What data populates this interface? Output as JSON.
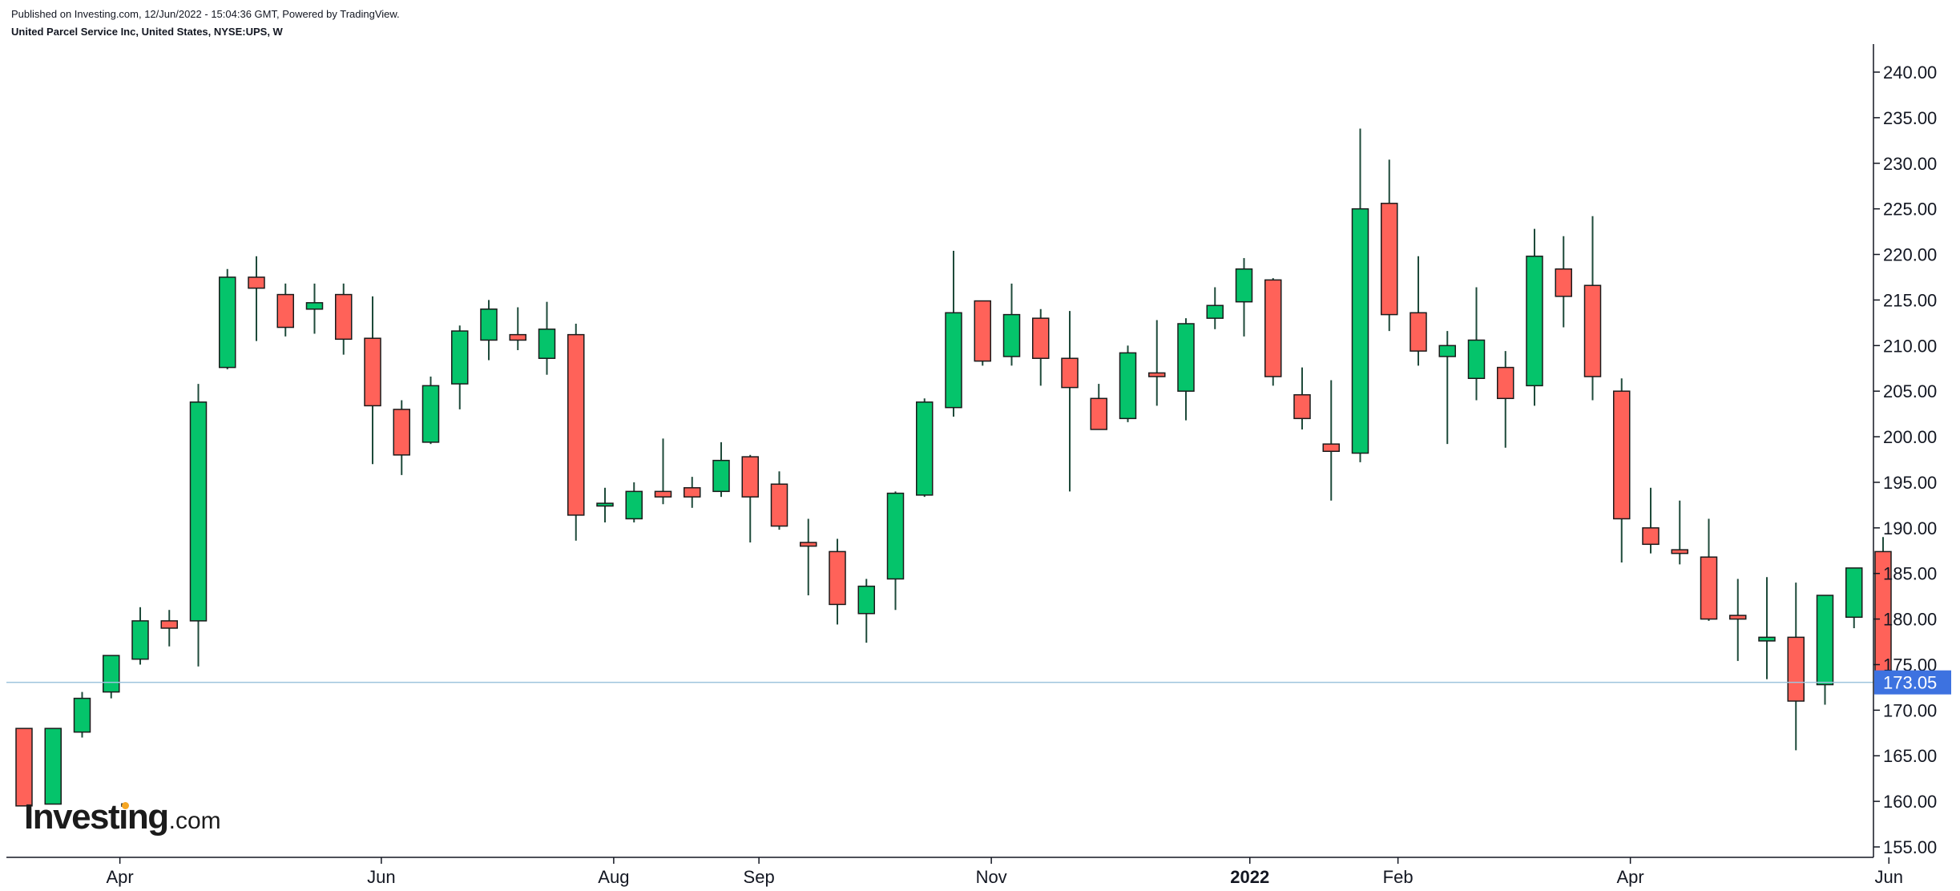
{
  "header": {
    "published": "Published on Investing.com, 12/Jun/2022 - 15:04:36 GMT, Powered by TradingView.",
    "symbol": "United Parcel Service Inc, United States, NYSE:UPS, W"
  },
  "logo": {
    "main": "Investing",
    "sub": ".com"
  },
  "colors": {
    "up": "#05c46b",
    "down": "#ff6259",
    "wick": "#1e4a3a",
    "price_line": "#9ec4dd",
    "price_tag": "#3d72e0",
    "axis": "#131722"
  },
  "chart_data": {
    "type": "candlestick",
    "ylim": [
      154,
      242
    ],
    "y_ticks": [
      "155.00",
      "160.00",
      "165.00",
      "170.00",
      "175.00",
      "180.00",
      "185.00",
      "190.00",
      "195.00",
      "200.00",
      "205.00",
      "210.00",
      "215.00",
      "220.00",
      "225.00",
      "230.00",
      "235.00",
      "240.00"
    ],
    "x_ticks": [
      {
        "label": "Apr",
        "index": 3.3,
        "bold": false
      },
      {
        "label": "Jun",
        "index": 12.3,
        "bold": false
      },
      {
        "label": "Aug",
        "index": 20.3,
        "bold": false
      },
      {
        "label": "Sep",
        "index": 25.3,
        "bold": false
      },
      {
        "label": "Nov",
        "index": 33.3,
        "bold": false
      },
      {
        "label": "2022",
        "index": 42.2,
        "bold": true
      },
      {
        "label": "Feb",
        "index": 47.3,
        "bold": false
      },
      {
        "label": "Apr",
        "index": 55.3,
        "bold": false
      },
      {
        "label": "Jun",
        "index": 64.2,
        "bold": false
      }
    ],
    "last_price": 173.05,
    "last_price_label": "173.05",
    "candles": [
      {
        "o": 168.0,
        "h": 168.0,
        "l": 159.5,
        "c": 159.5
      },
      {
        "o": 159.7,
        "h": 168.0,
        "l": 159.7,
        "c": 168.0
      },
      {
        "o": 167.6,
        "h": 172.0,
        "l": 167.0,
        "c": 171.3
      },
      {
        "o": 172.0,
        "h": 176.0,
        "l": 171.3,
        "c": 176.0
      },
      {
        "o": 175.6,
        "h": 181.3,
        "l": 175.0,
        "c": 179.8
      },
      {
        "o": 179.8,
        "h": 181.0,
        "l": 177.0,
        "c": 179.0
      },
      {
        "o": 179.8,
        "h": 205.8,
        "l": 174.8,
        "c": 203.8
      },
      {
        "o": 207.6,
        "h": 218.4,
        "l": 207.4,
        "c": 217.5
      },
      {
        "o": 217.5,
        "h": 219.8,
        "l": 210.5,
        "c": 216.3
      },
      {
        "o": 215.6,
        "h": 216.8,
        "l": 211.0,
        "c": 212.0
      },
      {
        "o": 214.0,
        "h": 216.8,
        "l": 211.3,
        "c": 214.7
      },
      {
        "o": 215.6,
        "h": 216.8,
        "l": 209.0,
        "c": 210.7
      },
      {
        "o": 210.8,
        "h": 215.4,
        "l": 197.0,
        "c": 203.4
      },
      {
        "o": 203.0,
        "h": 204.0,
        "l": 195.8,
        "c": 198.0
      },
      {
        "o": 199.4,
        "h": 206.6,
        "l": 199.2,
        "c": 205.6
      },
      {
        "o": 205.8,
        "h": 212.2,
        "l": 203.0,
        "c": 211.6
      },
      {
        "o": 210.6,
        "h": 215.0,
        "l": 208.4,
        "c": 214.0
      },
      {
        "o": 211.2,
        "h": 214.2,
        "l": 209.5,
        "c": 210.6
      },
      {
        "o": 208.6,
        "h": 214.8,
        "l": 206.8,
        "c": 211.8
      },
      {
        "o": 211.2,
        "h": 212.4,
        "l": 188.6,
        "c": 191.4
      },
      {
        "o": 192.4,
        "h": 194.4,
        "l": 190.6,
        "c": 192.7
      },
      {
        "o": 191.0,
        "h": 195.0,
        "l": 190.6,
        "c": 194.0
      },
      {
        "o": 194.0,
        "h": 199.8,
        "l": 192.6,
        "c": 193.4
      },
      {
        "o": 194.4,
        "h": 195.6,
        "l": 192.2,
        "c": 193.4
      },
      {
        "o": 194.0,
        "h": 199.4,
        "l": 193.4,
        "c": 197.4
      },
      {
        "o": 197.8,
        "h": 198.0,
        "l": 188.4,
        "c": 193.4
      },
      {
        "o": 194.8,
        "h": 196.2,
        "l": 189.8,
        "c": 190.2
      },
      {
        "o": 188.4,
        "h": 191.0,
        "l": 182.6,
        "c": 188.0
      },
      {
        "o": 187.4,
        "h": 188.8,
        "l": 179.4,
        "c": 181.6
      },
      {
        "o": 180.6,
        "h": 184.4,
        "l": 177.4,
        "c": 183.6
      },
      {
        "o": 184.4,
        "h": 194.0,
        "l": 181.0,
        "c": 193.8
      },
      {
        "o": 193.6,
        "h": 204.2,
        "l": 193.4,
        "c": 203.8
      },
      {
        "o": 203.2,
        "h": 220.4,
        "l": 202.2,
        "c": 213.6
      },
      {
        "o": 214.9,
        "h": 214.9,
        "l": 207.8,
        "c": 208.3
      },
      {
        "o": 208.8,
        "h": 216.8,
        "l": 207.8,
        "c": 213.4
      },
      {
        "o": 213.0,
        "h": 214.0,
        "l": 205.6,
        "c": 208.6
      },
      {
        "o": 208.6,
        "h": 213.8,
        "l": 194.0,
        "c": 205.4
      },
      {
        "o": 204.2,
        "h": 205.8,
        "l": 200.8,
        "c": 200.8
      },
      {
        "o": 202.0,
        "h": 210.0,
        "l": 201.6,
        "c": 209.2
      },
      {
        "o": 207.0,
        "h": 212.8,
        "l": 203.4,
        "c": 206.6
      },
      {
        "o": 205.0,
        "h": 213.0,
        "l": 201.8,
        "c": 212.4
      },
      {
        "o": 213.0,
        "h": 216.4,
        "l": 211.8,
        "c": 214.4
      },
      {
        "o": 214.8,
        "h": 219.6,
        "l": 211.0,
        "c": 218.4
      },
      {
        "o": 217.2,
        "h": 217.4,
        "l": 205.6,
        "c": 206.6
      },
      {
        "o": 204.6,
        "h": 207.6,
        "l": 200.8,
        "c": 202.0
      },
      {
        "o": 199.2,
        "h": 206.2,
        "l": 193.0,
        "c": 198.4
      },
      {
        "o": 198.2,
        "h": 233.8,
        "l": 197.2,
        "c": 225.0
      },
      {
        "o": 225.6,
        "h": 230.4,
        "l": 211.6,
        "c": 213.4
      },
      {
        "o": 213.6,
        "h": 219.8,
        "l": 207.8,
        "c": 209.4
      },
      {
        "o": 208.8,
        "h": 211.6,
        "l": 199.2,
        "c": 210.0
      },
      {
        "o": 206.4,
        "h": 216.4,
        "l": 204.0,
        "c": 210.6
      },
      {
        "o": 207.6,
        "h": 209.4,
        "l": 198.8,
        "c": 204.2
      },
      {
        "o": 205.6,
        "h": 222.8,
        "l": 203.4,
        "c": 219.8
      },
      {
        "o": 218.4,
        "h": 222.0,
        "l": 212.0,
        "c": 215.4
      },
      {
        "o": 216.6,
        "h": 224.2,
        "l": 204.0,
        "c": 206.6
      },
      {
        "o": 205.0,
        "h": 206.4,
        "l": 186.2,
        "c": 191.0
      },
      {
        "o": 190.0,
        "h": 194.4,
        "l": 187.2,
        "c": 188.2
      },
      {
        "o": 187.6,
        "h": 193.0,
        "l": 186.0,
        "c": 187.2
      },
      {
        "o": 186.8,
        "h": 191.0,
        "l": 179.8,
        "c": 180.0
      },
      {
        "o": 180.4,
        "h": 184.4,
        "l": 175.4,
        "c": 180.0
      },
      {
        "o": 177.6,
        "h": 184.6,
        "l": 173.4,
        "c": 178.0
      },
      {
        "o": 178.0,
        "h": 184.0,
        "l": 165.6,
        "c": 171.0
      },
      {
        "o": 172.8,
        "h": 182.6,
        "l": 170.6,
        "c": 182.6
      },
      {
        "o": 180.2,
        "h": 185.6,
        "l": 179.0,
        "c": 185.6
      },
      {
        "o": 187.4,
        "h": 189.0,
        "l": 172.0,
        "c": 173.05
      }
    ]
  }
}
